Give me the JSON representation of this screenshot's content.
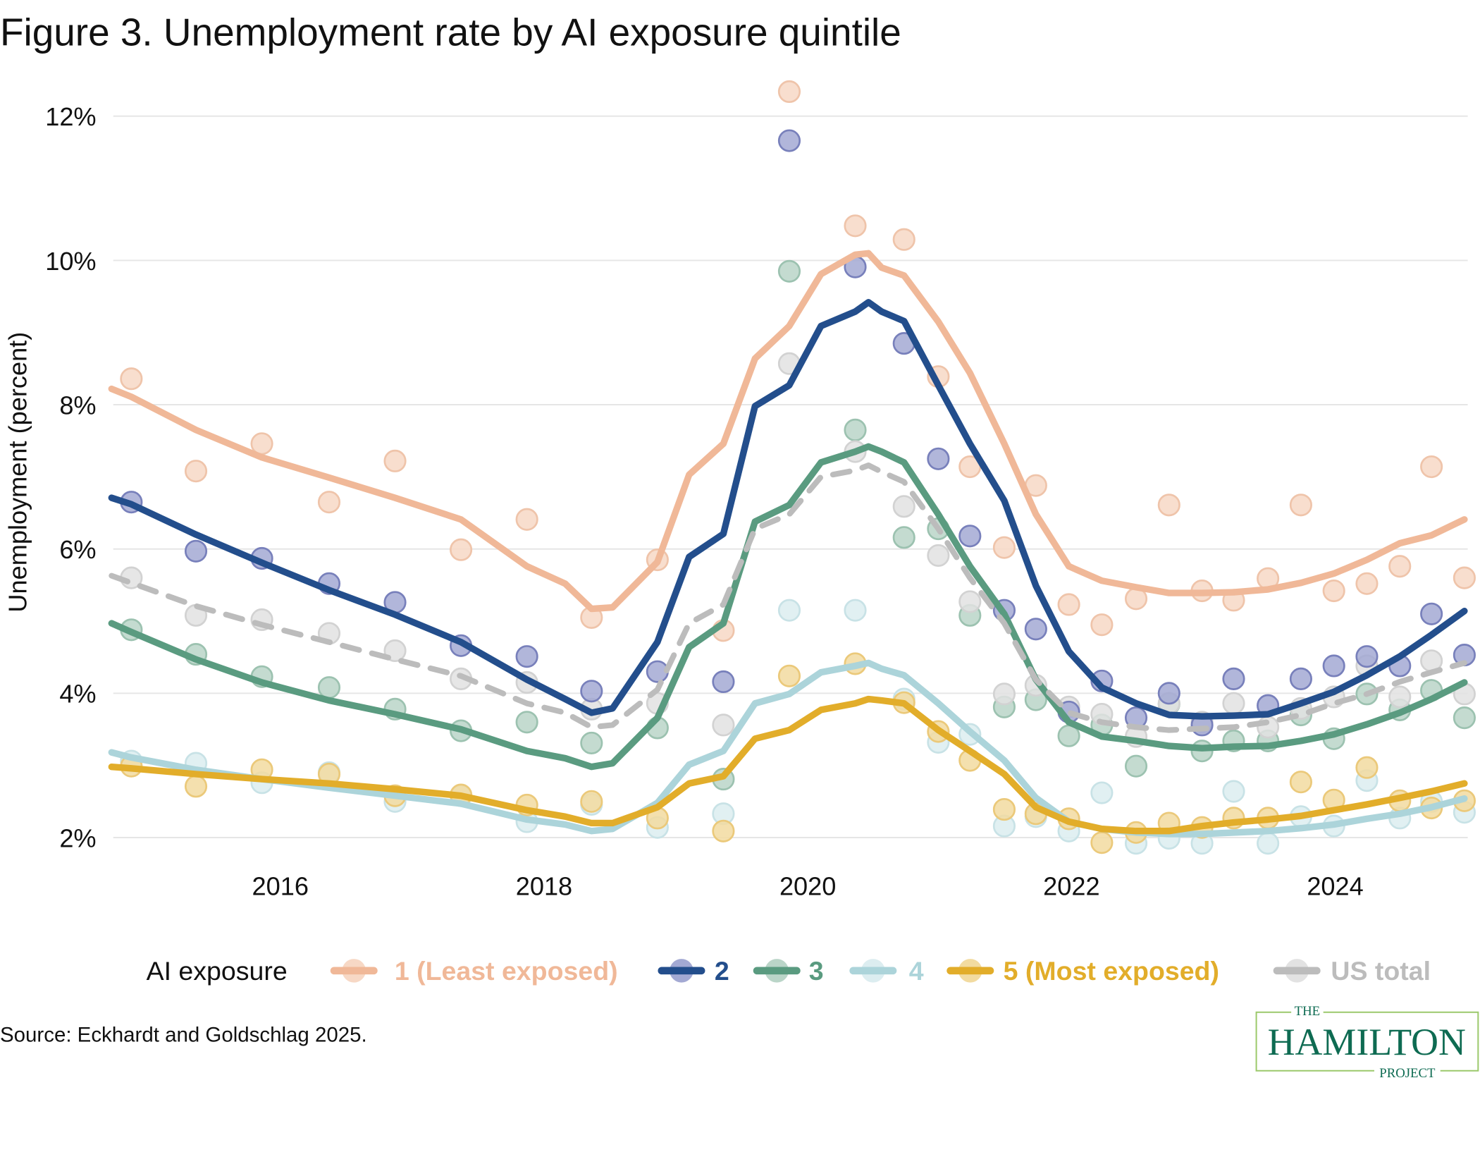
{
  "chart_data": {
    "type": "scatter",
    "title": "Figure 3. Unemployment rate by AI exposure quintile",
    "ylabel": "Unemployment (percent)",
    "xlabel": "",
    "ylim": [
      2,
      12
    ],
    "xlim": [
      2014.72,
      2024.98
    ],
    "y_ticks": [
      {
        "value": 2,
        "label": "2%"
      },
      {
        "value": 4,
        "label": "4%"
      },
      {
        "value": 6,
        "label": "6%"
      },
      {
        "value": 8,
        "label": "8%"
      },
      {
        "value": 10,
        "label": "10%"
      },
      {
        "value": 12,
        "label": "12%"
      }
    ],
    "x_ticks": [
      {
        "value": 2016,
        "label": "2016"
      },
      {
        "value": 2018,
        "label": "2018"
      },
      {
        "value": 2020,
        "label": "2020"
      },
      {
        "value": 2022,
        "label": "2022"
      },
      {
        "value": 2024,
        "label": "2024"
      }
    ],
    "grid": "horizontal",
    "legend_title": "AI exposure",
    "legend_position": "bottom",
    "dots_x": [
      2014.87,
      2015.36,
      2015.86,
      2016.37,
      2016.87,
      2017.37,
      2017.87,
      2018.36,
      2018.86,
      2019.36,
      2019.86,
      2020.36,
      2020.73,
      2020.99,
      2021.23,
      2021.49,
      2021.73,
      2021.98,
      2022.23,
      2022.49,
      2022.74,
      2022.99,
      2023.23,
      2023.49,
      2023.74,
      2023.99,
      2024.24,
      2024.49,
      2024.73,
      2024.98
    ],
    "trend_x": [
      2014.72,
      2014.87,
      2015.36,
      2015.86,
      2016.37,
      2016.87,
      2017.37,
      2017.87,
      2018.16,
      2018.36,
      2018.52,
      2018.86,
      2019.1,
      2019.36,
      2019.6,
      2019.86,
      2020.1,
      2020.36,
      2020.46,
      2020.56,
      2020.73,
      2020.99,
      2021.23,
      2021.49,
      2021.73,
      2021.98,
      2022.23,
      2022.49,
      2022.74,
      2022.99,
      2023.23,
      2023.49,
      2023.74,
      2023.99,
      2024.24,
      2024.49,
      2024.73,
      2024.98
    ],
    "series": [
      {
        "name": "1 (Least exposed)",
        "color": "#f0b898",
        "dot_fill": "#f7d8c5",
        "dot_stroke": "#efc4aa",
        "dashed": false,
        "dots": [
          8.36,
          7.08,
          7.46,
          6.65,
          7.22,
          5.99,
          6.41,
          5.05,
          5.85,
          4.87,
          12.34,
          10.48,
          10.29,
          8.39,
          7.14,
          6.02,
          6.88,
          5.23,
          4.95,
          5.31,
          6.61,
          5.42,
          5.29,
          5.59,
          6.61,
          5.42,
          5.52,
          5.76,
          7.14,
          5.6
        ],
        "trend": [
          8.22,
          8.11,
          7.65,
          7.27,
          6.99,
          6.71,
          6.41,
          5.76,
          5.52,
          5.17,
          5.19,
          5.82,
          7.03,
          7.46,
          8.64,
          9.09,
          9.81,
          10.08,
          10.1,
          9.9,
          9.79,
          9.15,
          8.44,
          7.46,
          6.48,
          5.76,
          5.56,
          5.47,
          5.39,
          5.39,
          5.4,
          5.44,
          5.53,
          5.66,
          5.85,
          6.08,
          6.19,
          6.41
        ]
      },
      {
        "name": "4",
        "color": "#acd4da",
        "dot_fill": "#dcedf0",
        "dot_stroke": "#c8e2e6",
        "dashed": false,
        "dots": [
          3.06,
          3.03,
          2.76,
          2.9,
          2.5,
          2.58,
          2.22,
          2.46,
          2.14,
          2.33,
          5.15,
          5.15,
          3.92,
          3.32,
          3.43,
          2.16,
          2.29,
          2.09,
          2.62,
          1.92,
          1.99,
          1.92,
          2.64,
          1.92,
          2.29,
          2.16,
          2.79,
          2.27,
          2.5,
          2.35
        ],
        "trend": [
          3.18,
          3.11,
          2.94,
          2.81,
          2.69,
          2.58,
          2.47,
          2.25,
          2.18,
          2.09,
          2.12,
          2.48,
          3.01,
          3.2,
          3.86,
          3.99,
          4.29,
          4.38,
          4.42,
          4.34,
          4.25,
          3.86,
          3.47,
          3.07,
          2.55,
          2.22,
          2.12,
          2.07,
          2.05,
          2.05,
          2.07,
          2.09,
          2.13,
          2.18,
          2.26,
          2.33,
          2.42,
          2.54
        ]
      },
      {
        "name": "5 (Most exposed)",
        "color": "#e2ad2a",
        "dot_fill": "#f2dba0",
        "dot_stroke": "#ebc97a",
        "dashed": false,
        "dots": [
          2.99,
          2.71,
          2.94,
          2.88,
          2.58,
          2.59,
          2.45,
          2.5,
          2.27,
          2.09,
          4.24,
          4.41,
          3.87,
          3.47,
          3.07,
          2.39,
          2.33,
          2.26,
          1.93,
          2.07,
          2.2,
          2.14,
          2.27,
          2.27,
          2.77,
          2.52,
          2.97,
          2.51,
          2.41,
          2.51
        ],
        "trend": [
          2.98,
          2.96,
          2.88,
          2.81,
          2.75,
          2.67,
          2.58,
          2.38,
          2.29,
          2.2,
          2.2,
          2.42,
          2.75,
          2.85,
          3.37,
          3.49,
          3.77,
          3.86,
          3.92,
          3.9,
          3.86,
          3.49,
          3.2,
          2.88,
          2.42,
          2.22,
          2.12,
          2.09,
          2.09,
          2.16,
          2.21,
          2.25,
          2.3,
          2.38,
          2.46,
          2.55,
          2.64,
          2.75
        ]
      },
      {
        "name": "3",
        "color": "#5a9b80",
        "dot_fill": "#bad5c8",
        "dot_stroke": "#9cc2b0",
        "dashed": false,
        "dots": [
          4.88,
          4.54,
          4.23,
          4.08,
          3.78,
          3.48,
          3.6,
          3.31,
          3.52,
          2.81,
          9.85,
          7.65,
          6.16,
          6.28,
          5.08,
          3.81,
          3.91,
          3.41,
          3.56,
          2.99,
          3.85,
          3.2,
          3.34,
          3.34,
          3.7,
          3.37,
          3.99,
          3.77,
          4.04,
          3.66
        ],
        "trend": [
          4.97,
          4.85,
          4.47,
          4.15,
          3.9,
          3.71,
          3.5,
          3.2,
          3.1,
          2.98,
          3.03,
          3.66,
          4.64,
          4.97,
          6.38,
          6.61,
          7.2,
          7.35,
          7.42,
          7.35,
          7.2,
          6.48,
          5.76,
          5.1,
          4.19,
          3.6,
          3.4,
          3.34,
          3.27,
          3.24,
          3.26,
          3.27,
          3.34,
          3.43,
          3.57,
          3.73,
          3.92,
          4.15
        ]
      },
      {
        "name": "US total",
        "color": "#bcbcbc",
        "dot_fill": "#e2e2e2",
        "dot_stroke": "#d2d2d2",
        "dashed": true,
        "dots": [
          5.6,
          5.08,
          5.02,
          4.83,
          4.59,
          4.2,
          4.15,
          3.78,
          3.86,
          3.56,
          8.57,
          7.35,
          6.59,
          5.91,
          5.27,
          3.99,
          4.11,
          3.81,
          3.71,
          3.4,
          3.86,
          3.6,
          3.86,
          3.53,
          3.79,
          3.95,
          4.38,
          3.95,
          4.45,
          3.99
        ],
        "trend": [
          5.63,
          5.53,
          5.21,
          4.95,
          4.71,
          4.47,
          4.24,
          3.86,
          3.73,
          3.53,
          3.56,
          4.05,
          4.97,
          5.23,
          6.28,
          6.48,
          7.0,
          7.09,
          7.16,
          7.07,
          6.93,
          6.28,
          5.6,
          4.97,
          4.19,
          3.73,
          3.6,
          3.53,
          3.49,
          3.51,
          3.53,
          3.6,
          3.7,
          3.86,
          3.99,
          4.16,
          4.29,
          4.42
        ]
      },
      {
        "name": "2",
        "color": "#234e8c",
        "dot_fill": "#a3a9d3",
        "dot_stroke": "#7880bb",
        "dashed": false,
        "dots": [
          6.65,
          5.97,
          5.87,
          5.52,
          5.26,
          4.66,
          4.51,
          4.03,
          4.3,
          4.16,
          11.66,
          9.91,
          8.85,
          7.25,
          6.18,
          5.15,
          4.89,
          3.74,
          4.17,
          3.66,
          4.0,
          3.56,
          4.2,
          3.83,
          4.2,
          4.38,
          4.51,
          4.38,
          5.1,
          4.53
        ],
        "trend": [
          6.71,
          6.62,
          6.2,
          5.81,
          5.43,
          5.09,
          4.71,
          4.19,
          3.92,
          3.73,
          3.79,
          4.71,
          5.89,
          6.21,
          7.98,
          8.27,
          9.09,
          9.29,
          9.42,
          9.29,
          9.16,
          8.27,
          7.46,
          6.67,
          5.49,
          4.58,
          4.08,
          3.86,
          3.7,
          3.68,
          3.69,
          3.71,
          3.86,
          4.02,
          4.25,
          4.51,
          4.81,
          5.14
        ]
      }
    ]
  },
  "legend": {
    "title": "AI exposure",
    "items": [
      {
        "label": "1 (Least exposed)",
        "color": "#f0b898",
        "dot": "#f7d8c5"
      },
      {
        "label": "2",
        "color": "#234e8c",
        "dot": "#a3a9d3"
      },
      {
        "label": "3",
        "color": "#5a9b80",
        "dot": "#bad5c8"
      },
      {
        "label": "4",
        "color": "#acd4da",
        "dot": "#dcedf0"
      },
      {
        "label": "5 (Most exposed)",
        "color": "#e2ad2a",
        "dot": "#f2dba0"
      },
      {
        "label": "US total",
        "color": "#bcbcbc",
        "dot": "#e2e2e2"
      }
    ]
  },
  "source": "Source: Eckhardt and Goldschlag 2025.",
  "logo": {
    "line1": "THE",
    "line2": "HAMILTON",
    "line3": "PROJECT",
    "border_color": "#9cc96b",
    "text_color": "#0e6b52"
  }
}
